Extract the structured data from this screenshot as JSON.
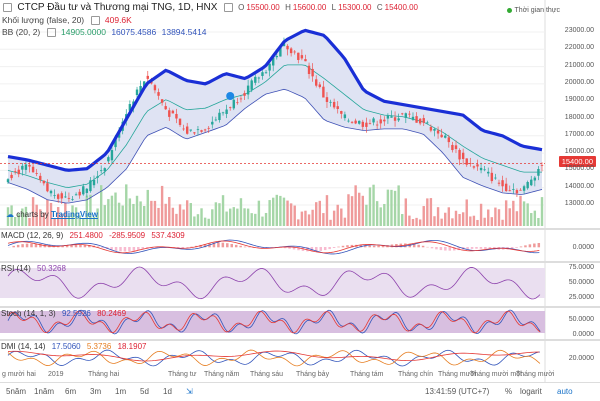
{
  "header": {
    "title": "CTCP Đầu tư và Thương mại TNG, 1D, HNX",
    "ohlc": {
      "o_label": "O",
      "o": "15500.00",
      "h_label": "H",
      "h": "15600.00",
      "l_label": "L",
      "l": "15300.00",
      "c_label": "C",
      "c": "15400.00"
    },
    "volume_label": "Khối lượng (false, 20)",
    "volume_value": "409.6K",
    "bb_label": "BB (20, 2)",
    "bb_values": [
      "14905.0000",
      "16075.4586",
      "13894.5414"
    ],
    "realtime": "Thời gian thực"
  },
  "watermark": {
    "prefix": "charts by",
    "brand": "TradingView"
  },
  "current_price_tag": "15400.00",
  "main_yaxis": [
    "23000.00",
    "22000.00",
    "21000.00",
    "20000.00",
    "19000.00",
    "18000.00",
    "17000.00",
    "16000.00",
    "15000.00",
    "14000.00",
    "13000.00"
  ],
  "indicators": {
    "macd": {
      "label": "MACD (12, 26, 9)",
      "values": [
        "251.4800",
        "-285.9509",
        "537.4309"
      ],
      "yaxis": [
        "0.0000"
      ]
    },
    "rsi": {
      "label": "RSI (14)",
      "values": [
        "50.3268"
      ],
      "yaxis": [
        "75.0000",
        "50.0000",
        "25.0000"
      ]
    },
    "stoch": {
      "label": "Stoch (14, 1, 3)",
      "values": [
        "92.5926",
        "80.2469"
      ],
      "yaxis": [
        "50.0000",
        "0.0000"
      ]
    },
    "dmi": {
      "label": "DMI (14, 14)",
      "values": [
        "17.5060",
        "5.3736",
        "18.1907"
      ],
      "yaxis": [
        "20.0000"
      ]
    }
  },
  "xaxis_labels": [
    "g mười hai",
    "2019",
    "Tháng hai",
    "Tháng tư",
    "Tháng năm",
    "Tháng sáu",
    "Tháng bảy",
    "Tháng tám",
    "Tháng chín",
    "Tháng mười",
    "Tháng mười một",
    "Tháng mười"
  ],
  "bottombar": {
    "ranges": [
      "5năm",
      "1năm",
      "6m",
      "3m",
      "1m",
      "5d",
      "1d"
    ],
    "time": "13:41:59 (UTC+7)",
    "pct": "%",
    "log": "logarit",
    "auto": "auto"
  },
  "chart_data": {
    "type": "candlestick",
    "upper_band_path": [
      15800,
      15600,
      15300,
      15000,
      15100,
      16000,
      18000,
      20000,
      20800,
      20200,
      20000,
      20600,
      20300,
      21000,
      22500,
      23100,
      22800,
      21500,
      19600,
      19000,
      18800,
      18600,
      18400,
      18200,
      17300,
      17000,
      16400,
      16200
    ],
    "close_path": [
      14700,
      15200,
      13800,
      13400,
      14000,
      15500,
      18500,
      20500,
      18500,
      17200,
      17500,
      18500,
      19600,
      20800,
      22400,
      21200,
      19200,
      18000,
      17700,
      17900,
      18200,
      17800,
      17000,
      15600,
      15000,
      14100,
      13800,
      15400
    ],
    "lower_band_path": [
      14300,
      13900,
      13300,
      13100,
      13300,
      14000,
      15100,
      17000,
      17500,
      16800,
      17200,
      17600,
      18600,
      19400,
      19700,
      19200,
      17900,
      17500,
      17300,
      17400,
      17400,
      17100,
      16000,
      14600,
      14100,
      13700,
      13600,
      13900
    ],
    "mid_band_path": [
      15000,
      14700,
      14300,
      14000,
      14200,
      15000,
      16500,
      18400,
      19100,
      18500,
      18600,
      19100,
      19400,
      20100,
      21100,
      21100,
      20300,
      19400,
      18500,
      18200,
      18100,
      17800,
      17200,
      16400,
      15700,
      15300,
      14900,
      14900
    ]
  }
}
